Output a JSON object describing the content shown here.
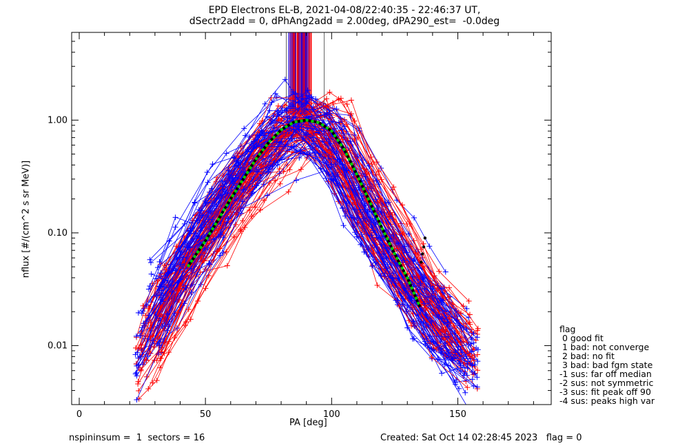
{
  "chart_data": {
    "type": "scatter",
    "title_line1": "EPD Electrons EL-B, 2021-04-08/22:40:35 - 22:46:37 UT,",
    "title_line2": "dSectr2add = 0, dPhAng2add = 2.00deg, dPA290_est=  -0.0deg",
    "xlabel": "PA [deg]",
    "ylabel": "nflux [#/(cm^2 s sr MeV)]",
    "xlim": [
      -3,
      187
    ],
    "ylim": [
      0.003,
      6.0
    ],
    "yscale": "log",
    "xticks": [
      "0",
      "50",
      "100",
      "150"
    ],
    "yticks": [
      "0.01",
      "0.10",
      "1.00"
    ],
    "grid": false,
    "legend_placement": "right, outside plot",
    "legend": {
      "title": "flag",
      "entries": [
        " 0 good fit",
        " 1 bad: not converge",
        " 2 bad: no fit",
        " 3 bad: bad fgm state",
        "-1 sus: far off median",
        "-2 sus: not symmetric",
        "-3 sus: fit peak off 90",
        "-4 sus: peaks high var"
      ]
    },
    "series": [
      {
        "color": "#0000ff",
        "marker": "+",
        "x": [
          22,
          25,
          28,
          30,
          33,
          35,
          38,
          40,
          42,
          45,
          48,
          50,
          55,
          60,
          65,
          70,
          75,
          80,
          85,
          90,
          95,
          100,
          105,
          110,
          115,
          120,
          125,
          130,
          135,
          140,
          145,
          150,
          155
        ],
        "y": [
          0.008,
          0.01,
          0.014,
          0.019,
          0.025,
          0.031,
          0.039,
          0.048,
          0.056,
          0.07,
          0.088,
          0.1,
          0.15,
          0.23,
          0.33,
          0.45,
          0.6,
          0.82,
          0.95,
          0.96,
          0.9,
          0.72,
          0.42,
          0.25,
          0.15,
          0.095,
          0.062,
          0.04,
          0.028,
          0.02,
          0.014,
          0.01,
          0.007
        ]
      },
      {
        "color": "#ff0000",
        "marker": "+",
        "x": [
          22,
          25,
          28,
          30,
          33,
          35,
          38,
          40,
          42,
          45,
          48,
          50,
          55,
          60,
          65,
          70,
          75,
          80,
          85,
          90,
          95,
          100,
          105,
          110,
          115,
          120,
          125,
          130,
          135,
          140,
          145,
          150,
          155
        ],
        "y": [
          0.006,
          0.008,
          0.011,
          0.015,
          0.02,
          0.026,
          0.034,
          0.042,
          0.05,
          0.064,
          0.08,
          0.095,
          0.14,
          0.21,
          0.3,
          0.42,
          0.58,
          0.8,
          0.93,
          0.95,
          0.92,
          0.78,
          0.46,
          0.27,
          0.16,
          0.1,
          0.065,
          0.042,
          0.029,
          0.021,
          0.015,
          0.011,
          0.008
        ]
      }
    ],
    "fit": {
      "color": "#00cc00",
      "style": "dashed",
      "x": [
        43,
        50,
        55,
        60,
        65,
        70,
        75,
        80,
        85,
        90,
        95,
        100,
        105,
        110,
        115,
        120,
        125,
        130,
        135
      ],
      "y": [
        0.05,
        0.085,
        0.13,
        0.2,
        0.3,
        0.45,
        0.63,
        0.82,
        0.96,
        1.0,
        0.95,
        0.8,
        0.55,
        0.33,
        0.19,
        0.11,
        0.065,
        0.04,
        0.022
      ]
    },
    "reference_markers": {
      "color": "#000000",
      "x": [
        137,
        136.5,
        136,
        135.5
      ],
      "y": [
        0.09,
        0.075,
        0.065,
        0.055
      ]
    },
    "top_band": {
      "x_range": [
        82,
        97
      ],
      "colors": [
        "#0000ff",
        "#ff0000",
        "#800080"
      ]
    }
  },
  "footer": {
    "left": "nspininsum =  1  sectors = 16",
    "right": "Created: Sat Oct 14 02:28:45 2023   flag = 0"
  }
}
